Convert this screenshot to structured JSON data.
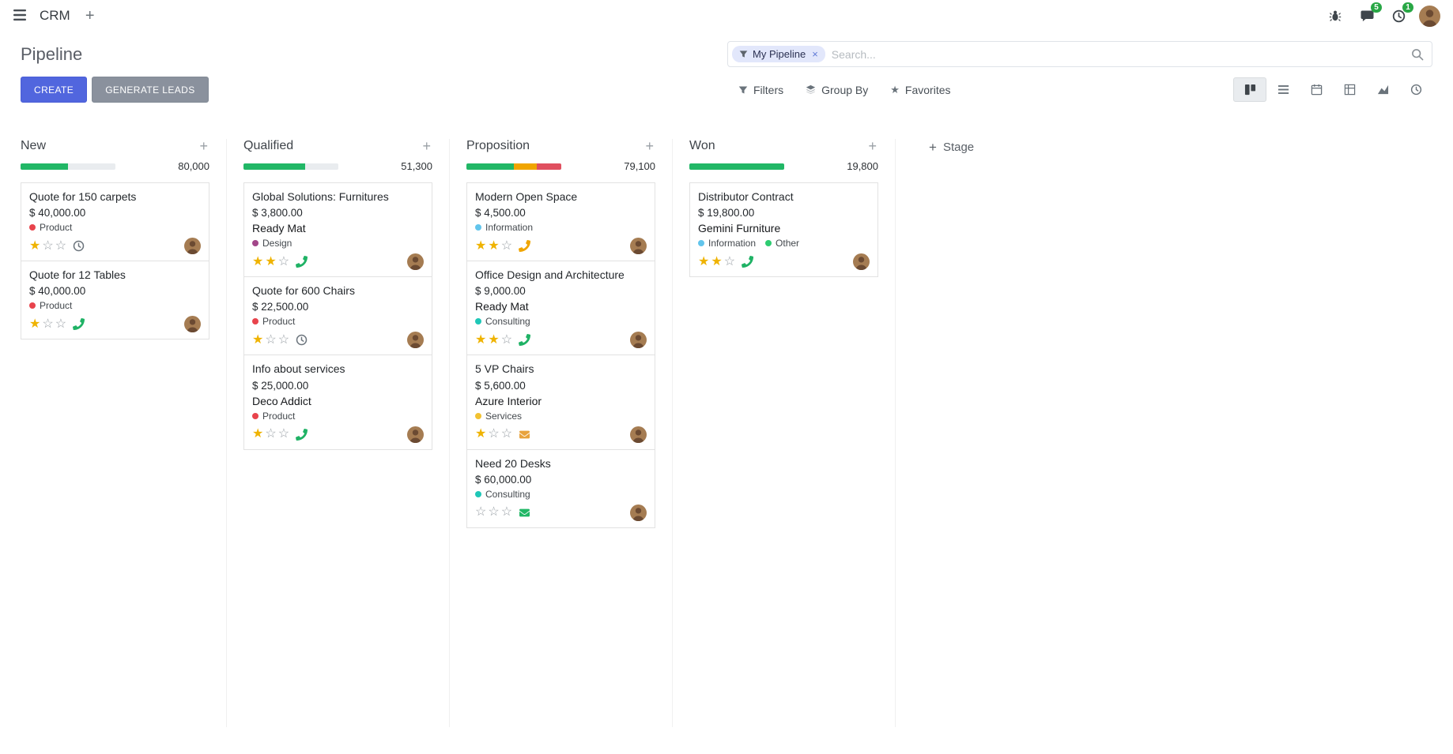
{
  "icons": {
    "plus": "+",
    "close": "×",
    "star_filled": "★",
    "star_empty": "☆"
  },
  "colors": {
    "primary": "#5166de",
    "secondary": "#8a919d",
    "success": "#21b766",
    "warning": "#f0a500",
    "danger": "#e04f5f",
    "badge": "#28a745"
  },
  "navbar": {
    "app_name": "CRM",
    "messages_badge": "5",
    "activities_badge": "1"
  },
  "control_panel": {
    "title": "Pipeline",
    "create_label": "CREATE",
    "generate_leads_label": "GENERATE LEADS",
    "search": {
      "facet_label": "My Pipeline",
      "placeholder": "Search..."
    },
    "menus": {
      "filters": "Filters",
      "group_by": "Group By",
      "favorites": "Favorites"
    },
    "view_switcher": [
      {
        "name": "kanban",
        "active": true
      },
      {
        "name": "list",
        "active": false
      },
      {
        "name": "calendar",
        "active": false
      },
      {
        "name": "pivot",
        "active": false
      },
      {
        "name": "graph",
        "active": false
      },
      {
        "name": "activity",
        "active": false
      }
    ]
  },
  "kanban": {
    "add_stage_label": "Stage",
    "columns": [
      {
        "name": "New",
        "total": "80,000",
        "progress": [
          {
            "color": "#21b766",
            "pct": 50
          }
        ],
        "cards": [
          {
            "title": "Quote for 150 carpets",
            "amount": "$ 40,000.00",
            "partner": "",
            "tags": [
              {
                "label": "Product",
                "color": "#e8434c"
              }
            ],
            "stars": 1,
            "activity": {
              "icon": "clock",
              "color": "#6c757d"
            }
          },
          {
            "title": "Quote for 12 Tables",
            "amount": "$ 40,000.00",
            "partner": "",
            "tags": [
              {
                "label": "Product",
                "color": "#e8434c"
              }
            ],
            "stars": 1,
            "activity": {
              "icon": "phone",
              "color": "#1fb265"
            }
          }
        ]
      },
      {
        "name": "Qualified",
        "total": "51,300",
        "progress": [
          {
            "color": "#21b766",
            "pct": 65
          }
        ],
        "cards": [
          {
            "title": "Global Solutions: Furnitures",
            "amount": "$ 3,800.00",
            "partner": "Ready Mat",
            "tags": [
              {
                "label": "Design",
                "color": "#a24689"
              }
            ],
            "stars": 2,
            "activity": {
              "icon": "phone",
              "color": "#1fb265"
            }
          },
          {
            "title": "Quote for 600 Chairs",
            "amount": "$ 22,500.00",
            "partner": "",
            "tags": [
              {
                "label": "Product",
                "color": "#e8434c"
              }
            ],
            "stars": 1,
            "activity": {
              "icon": "clock",
              "color": "#6c757d"
            }
          },
          {
            "title": "Info about services",
            "amount": "$ 25,000.00",
            "partner": "Deco Addict",
            "tags": [
              {
                "label": "Product",
                "color": "#e8434c"
              }
            ],
            "stars": 1,
            "activity": {
              "icon": "phone",
              "color": "#1fb265"
            }
          }
        ]
      },
      {
        "name": "Proposition",
        "total": "79,100",
        "progress": [
          {
            "color": "#21b766",
            "pct": 50
          },
          {
            "color": "#f0a500",
            "pct": 24
          },
          {
            "color": "#e04f5f",
            "pct": 26
          }
        ],
        "cards": [
          {
            "title": "Modern Open Space",
            "amount": "$ 4,500.00",
            "partner": "",
            "tags": [
              {
                "label": "Information",
                "color": "#62c5ec"
              }
            ],
            "stars": 2,
            "activity": {
              "icon": "phone",
              "color": "#f0a500"
            }
          },
          {
            "title": "Office Design and Architecture",
            "amount": "$ 9,000.00",
            "partner": "Ready Mat",
            "tags": [
              {
                "label": "Consulting",
                "color": "#1fc7b7"
              }
            ],
            "stars": 2,
            "activity": {
              "icon": "phone",
              "color": "#1fb265"
            }
          },
          {
            "title": "5 VP Chairs",
            "amount": "$ 5,600.00",
            "partner": "Azure Interior",
            "tags": [
              {
                "label": "Services",
                "color": "#f2c231"
              }
            ],
            "stars": 1,
            "activity": {
              "icon": "envelope",
              "color": "#e8a33d"
            }
          },
          {
            "title": "Need 20 Desks",
            "amount": "$ 60,000.00",
            "partner": "",
            "tags": [
              {
                "label": "Consulting",
                "color": "#1fc7b7"
              }
            ],
            "stars": 0,
            "activity": {
              "icon": "envelope",
              "color": "#21b766"
            }
          }
        ]
      },
      {
        "name": "Won",
        "total": "19,800",
        "progress": [
          {
            "color": "#21b766",
            "pct": 100
          }
        ],
        "cards": [
          {
            "title": "Distributor Contract",
            "amount": "$ 19,800.00",
            "partner": "Gemini Furniture",
            "tags": [
              {
                "label": "Information",
                "color": "#62c5ec"
              },
              {
                "label": "Other",
                "color": "#2ecc71"
              }
            ],
            "stars": 2,
            "activity": {
              "icon": "phone",
              "color": "#1fb265"
            }
          }
        ]
      }
    ]
  }
}
